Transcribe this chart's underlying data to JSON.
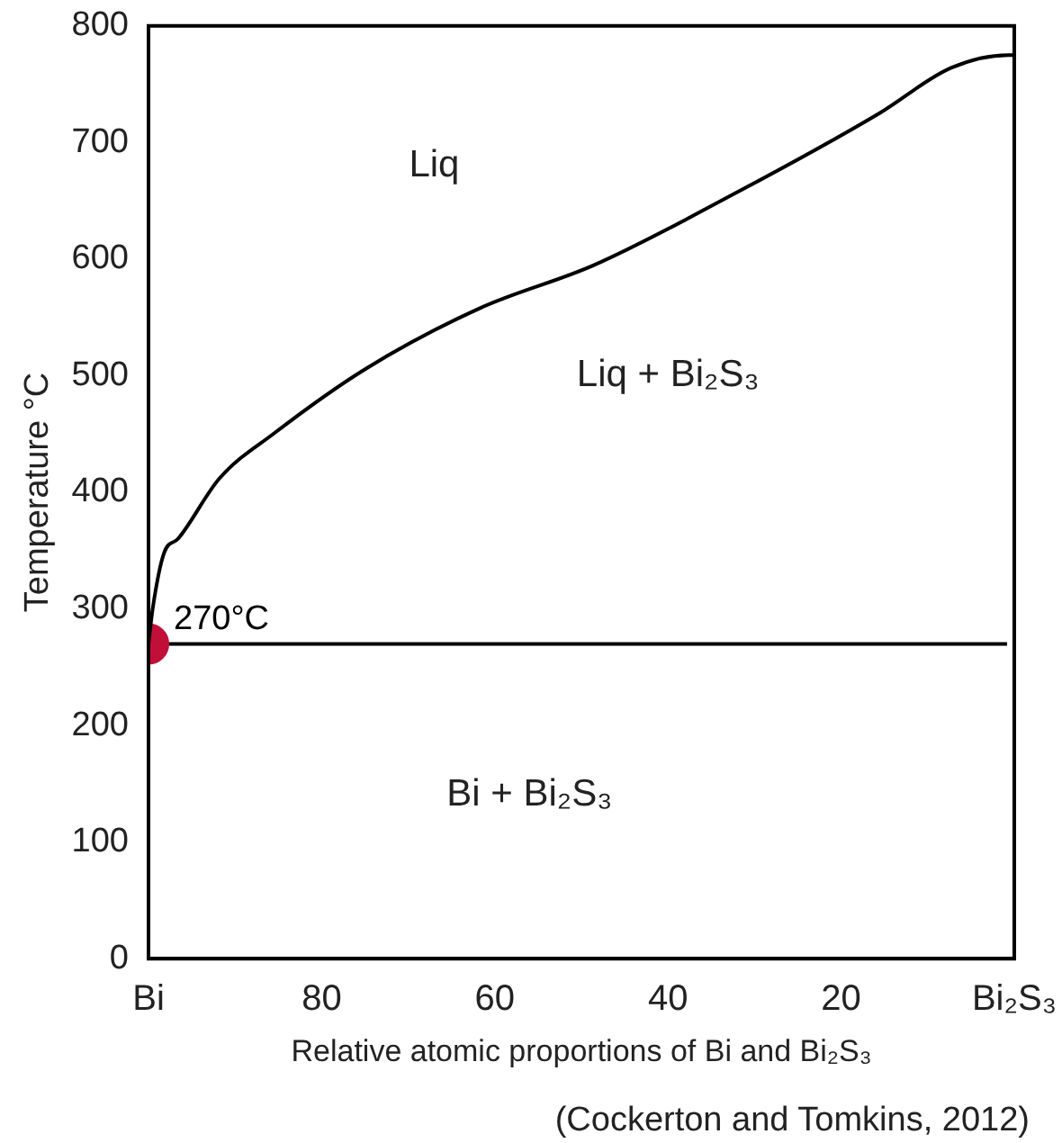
{
  "chart_data": {
    "type": "line",
    "xlabel": "Relative atomic proportions of Bi and Bi₂S₃",
    "ylabel": "Temperature °C",
    "xlim": [
      100,
      0
    ],
    "xticks": [
      {
        "value": 100,
        "label": "Bi"
      },
      80,
      60,
      40,
      20,
      {
        "value": 0,
        "label": "Bi₂S₃"
      }
    ],
    "ylim": [
      0,
      800
    ],
    "yticks": [
      0,
      100,
      200,
      300,
      400,
      500,
      600,
      700,
      800
    ],
    "grid": false,
    "legend": false,
    "marker": "none",
    "line_style": "solid",
    "series": [
      {
        "color": "#000000",
        "x": [
          100,
          99.5,
          98.2,
          96.6,
          91.8,
          85.6,
          74.9,
          61.7,
          48.5,
          32.1,
          15.6,
          7.3,
          0.7,
          0
        ],
        "values": [
          270,
          301,
          348,
          360,
          412,
          450,
          506,
          558,
          595,
          657,
          725,
          764,
          775,
          775
        ]
      },
      {
        "type": "scatter",
        "color": "#c0103a",
        "marker": "circle",
        "x": [
          100
        ],
        "values": [
          270
        ]
      }
    ],
    "ref_lines": [
      {
        "axis": "y",
        "value": 270,
        "label": "270°C",
        "color": "#000000"
      }
    ],
    "annotations": [
      "Liq",
      "Liq + Bi₂S₃",
      "Bi + Bi₂S₃",
      "(Cockerton and Tomkins, 2012)"
    ]
  }
}
